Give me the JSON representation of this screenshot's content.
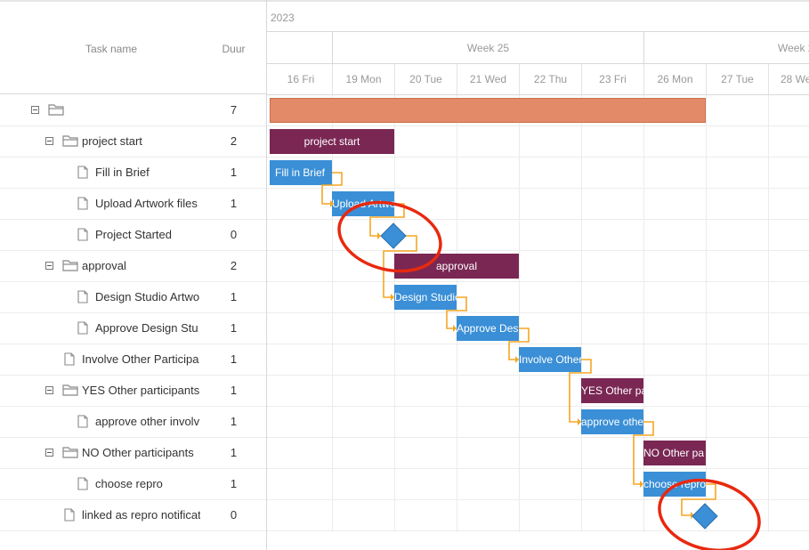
{
  "grid": {
    "header": {
      "task_name": "Task name",
      "duration": "Duur"
    },
    "rows": [
      {
        "label": "",
        "duration": "7"
      },
      {
        "label": "project start",
        "duration": "2"
      },
      {
        "label": "Fill in Brief",
        "duration": "1"
      },
      {
        "label": "Upload Artwork files",
        "duration": "1"
      },
      {
        "label": "Project Started",
        "duration": "0"
      },
      {
        "label": "approval",
        "duration": "2"
      },
      {
        "label": "Design Studio Artwo",
        "duration": "1"
      },
      {
        "label": "Approve Design Stu",
        "duration": "1"
      },
      {
        "label": "Involve Other Participa",
        "duration": "1"
      },
      {
        "label": "YES Other participants",
        "duration": "1"
      },
      {
        "label": "approve other involv",
        "duration": "1"
      },
      {
        "label": "NO Other participants",
        "duration": "1"
      },
      {
        "label": "choose repro",
        "duration": "1"
      },
      {
        "label": "linked as repro notificat",
        "duration": "0"
      }
    ]
  },
  "timeline": {
    "year": "2023",
    "weeks": [
      "Week 25",
      "Week 2"
    ],
    "days": [
      "16 Fri",
      "19 Mon",
      "20 Tue",
      "21 Wed",
      "22 Thu",
      "23 Fri",
      "26 Mon",
      "27 Tue",
      "28 We"
    ]
  },
  "bars": {
    "project_start": "project start",
    "fill_in_brief": "Fill in Brief",
    "upload_artwork": "Upload Artwo",
    "approval": "approval",
    "design_studio": "Design Studio",
    "approve_design": "Approve Des",
    "involve_other": "Involve Other",
    "yes_other": "YES Other pa",
    "approve_other": "approve othe",
    "no_other": "NO Other pa",
    "choose_repro": "choose repro"
  },
  "colors": {
    "summary": "#e38b68",
    "group": "#7a2754",
    "task": "#3a8fd6",
    "link": "#f5a623",
    "highlight": "#e8290f"
  }
}
